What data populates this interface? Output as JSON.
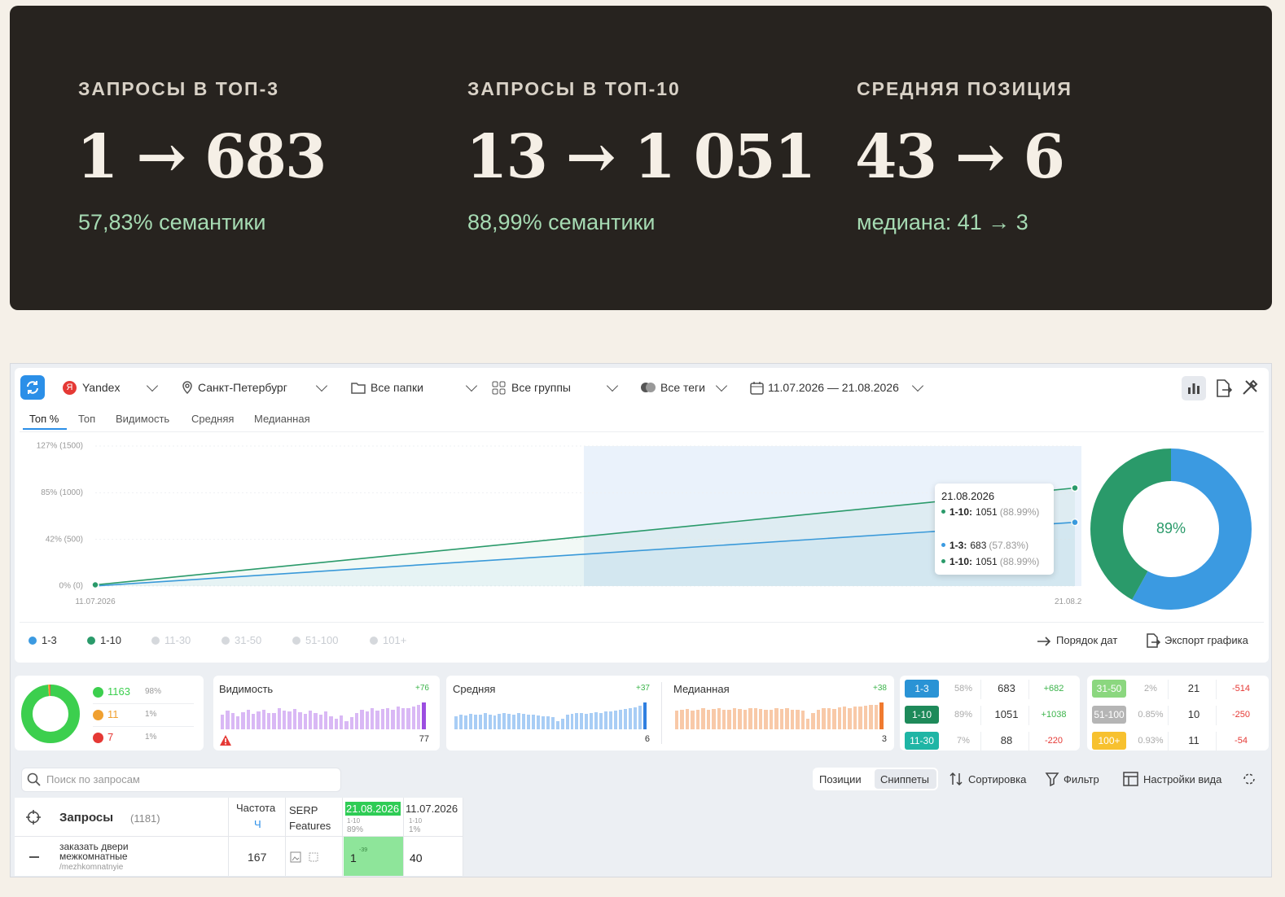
{
  "stats": [
    {
      "title": "ЗАПРОСЫ В ТОП-3",
      "value": "1 → 683",
      "note": "57,83% семантики"
    },
    {
      "title": "ЗАПРОСЫ В ТОП-10",
      "value": "13 → 1 051",
      "note": "88,99% семантики"
    },
    {
      "title": "СРЕДНЯЯ ПОЗИЦИЯ",
      "value": "43 → 6",
      "note": "медиана: 41 → 3"
    }
  ],
  "toolbar": {
    "engine": "Yandex",
    "region": "Санкт-Петербург",
    "folders": "Все папки",
    "groups": "Все группы",
    "tags": "Все теги",
    "dates": "11.07.2026 — 21.08.2026"
  },
  "tabs": [
    "Топ %",
    "Топ",
    "Видимость",
    "Средняя",
    "Медианная"
  ],
  "chart": {
    "type": "line",
    "x": [
      "11.07.2026",
      "21.08.2026"
    ],
    "ylim": [
      0,
      1500
    ],
    "yticks": [
      {
        "value": 0,
        "label": "0% (0)"
      },
      {
        "value": 500,
        "label": "42% (500)"
      },
      {
        "value": 1000,
        "label": "85% (1000)"
      },
      {
        "value": 1500,
        "label": "127% (1500)"
      }
    ],
    "grid": true,
    "series": [
      {
        "name": "1-3",
        "color": "#3b9ae1",
        "values": [
          1,
          683
        ]
      },
      {
        "name": "1-10",
        "color": "#2a9a6a",
        "values": [
          13,
          1051
        ]
      }
    ],
    "inactive_series": [
      "11-30",
      "31-50",
      "51-100",
      "101+"
    ],
    "tooltip": {
      "date": "21.08.2026",
      "rows": [
        {
          "label": "1-10:",
          "value": "1051",
          "share": "(88.99%)"
        },
        {
          "label": "1-3:",
          "value": "683",
          "share": "(57.83%)"
        },
        {
          "label": "1-10:",
          "value": "1051",
          "share": "(88.99%)"
        }
      ]
    }
  },
  "donut": {
    "label": "89%",
    "segments": [
      {
        "color": "#3b9ae1",
        "value": 58
      },
      {
        "color": "#2a9a6a",
        "value": 42
      }
    ]
  },
  "chart_buttons": [
    "Порядок дат",
    "Экспорт графика"
  ],
  "summary": {
    "rows": [
      {
        "count": 1163,
        "share": "98%",
        "color": "#3ccf4e"
      },
      {
        "count": 11,
        "share": "1%",
        "color": "#f0a030"
      },
      {
        "count": 7,
        "share": "1%",
        "color": "#e53935"
      }
    ]
  },
  "sparks": [
    {
      "title": "Видимость",
      "delta": "+76",
      "last": "77",
      "color": "#d9b8f5",
      "accent": "#9b4de0",
      "values": [
        55,
        70,
        60,
        50,
        65,
        72,
        58,
        66,
        74,
        62,
        60,
        80,
        70,
        68,
        75,
        64,
        58,
        70,
        62,
        55,
        66,
        48,
        40,
        52,
        30,
        45,
        60,
        72,
        66,
        78,
        70,
        75,
        80,
        72,
        84,
        78,
        80,
        86,
        90,
        100
      ]
    },
    {
      "title": "Средняя",
      "delta": "+37",
      "last": "6",
      "color": "#a8cdf5",
      "accent": "#2f7fe0",
      "values": [
        50,
        55,
        52,
        58,
        54,
        56,
        60,
        55,
        53,
        58,
        62,
        57,
        55,
        60,
        58,
        54,
        56,
        52,
        50,
        48,
        45,
        30,
        40,
        55,
        58,
        60,
        62,
        58,
        60,
        64,
        62,
        66,
        68,
        70,
        72,
        75,
        78,
        82,
        88,
        100
      ]
    },
    {
      "title": "Медианная",
      "delta": "+38",
      "last": "3",
      "color": "#f8c9a8",
      "accent": "#f07a30",
      "values": [
        70,
        72,
        75,
        70,
        74,
        78,
        72,
        76,
        80,
        74,
        72,
        78,
        76,
        74,
        80,
        78,
        76,
        74,
        72,
        78,
        76,
        80,
        74,
        72,
        70,
        40,
        60,
        72,
        78,
        80,
        76,
        82,
        84,
        80,
        86,
        84,
        88,
        90,
        92,
        100
      ]
    }
  ],
  "ranges": [
    {
      "label": "1-3",
      "color": "#2a93d5",
      "share": "58%",
      "value": "683",
      "delta": "+682"
    },
    {
      "label": "1-10",
      "color": "#1e8a5a",
      "share": "89%",
      "value": "1051",
      "delta": "+1038"
    },
    {
      "label": "11-30",
      "color": "#1fb5a5",
      "share": "7%",
      "value": "88",
      "delta": "-220"
    },
    {
      "label": "31-50",
      "color": "#8bd77f",
      "share": "2%",
      "value": "21",
      "delta": "-514"
    },
    {
      "label": "51-100",
      "color": "#b5b5b5",
      "share": "0.85%",
      "value": "10",
      "delta": "-250"
    },
    {
      "label": "100+",
      "color": "#f7c12f",
      "share": "0.93%",
      "value": "11",
      "delta": "-54"
    }
  ],
  "search": {
    "placeholder": "Поиск по запросам",
    "views": [
      "Позиции",
      "Сниппеты"
    ],
    "actions": [
      "Сортировка",
      "Фильтр",
      "Настройки вида"
    ]
  },
  "table": {
    "headers": {
      "query": "Запросы",
      "count": "(1181)",
      "freq": "Частота",
      "freq_sub": "Ч",
      "serp": "SERP Features",
      "date1": "21.08.2026",
      "date1_sub": "1-10",
      "date1_share": "89%",
      "date2": "11.07.2026",
      "date2_sub": "1-10",
      "date2_share": "1%"
    },
    "rows": [
      {
        "query": "заказать двери межкомнатные",
        "url": "/mezhkomnatnyie",
        "freq": "167",
        "pos1": "1",
        "pos1_delta": "-39",
        "pos2": "40"
      }
    ]
  }
}
